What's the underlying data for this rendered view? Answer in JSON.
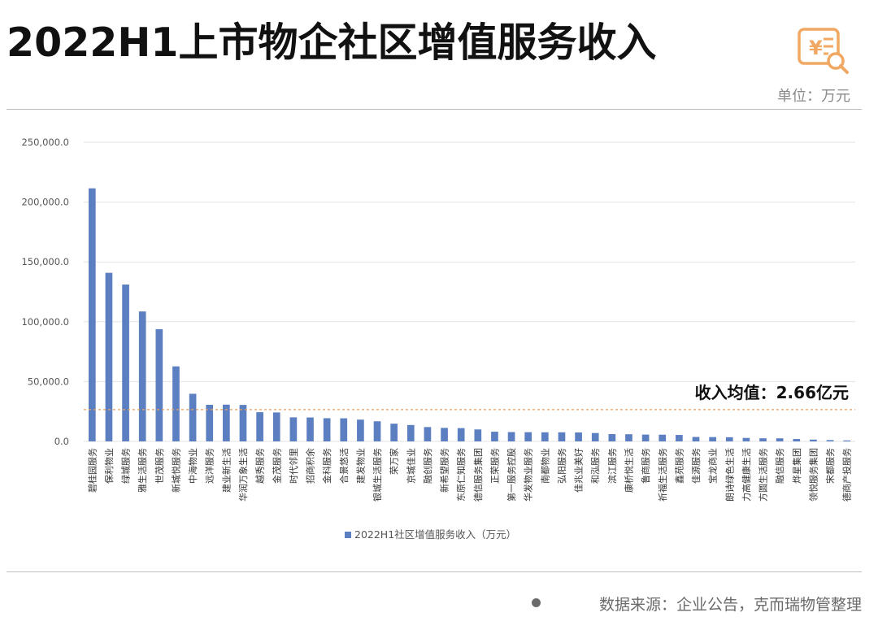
{
  "header": {
    "title": "2022H1上市物企社区增值服务收入",
    "unit": "单位：万元",
    "logo_icon": "currency-search-icon"
  },
  "footer": {
    "source": "数据来源：企业公告，克而瑞物管整理"
  },
  "colors": {
    "bar": "#5b7fc1",
    "average_line": "#e8a05c",
    "grid": "#e3e3e3",
    "logo": "#f0a862"
  },
  "chart_data": {
    "type": "bar",
    "categories": [
      "碧桂园服务",
      "保利物业",
      "绿城服务",
      "雅生活服务",
      "世茂服务",
      "新城悦服务",
      "中海物业",
      "远洋服务",
      "建业新生活",
      "华润万象生活",
      "越秀服务",
      "金茂服务",
      "时代邻里",
      "招商积余",
      "金科服务",
      "合景悠活",
      "建发物业",
      "银城生活服务",
      "荣万家",
      "京城佳业",
      "融创服务",
      "新希望服务",
      "东原仁知服务",
      "德信服务集团",
      "正荣服务",
      "第一服务控股",
      "华发物业服务",
      "南都物业",
      "弘阳服务",
      "佳兆业美好",
      "和泓服务",
      "滨江服务",
      "康桥悦生活",
      "鲁商服务",
      "祈福生活服务",
      "鑫苑服务",
      "佳源服务",
      "宝龙商业",
      "朗诗绿色生活",
      "力高健康生活",
      "方圆生活服务",
      "融信服务",
      "烨星集团",
      "领悦服务集团",
      "宋都服务",
      "德商产投服务"
    ],
    "series": [
      {
        "name": "2022H1社区增值服务收入（万元）",
        "values": [
          211500,
          140900,
          131100,
          108600,
          93800,
          62700,
          39800,
          30600,
          30700,
          30500,
          24400,
          24200,
          20100,
          20000,
          19400,
          19300,
          18200,
          16800,
          14800,
          13700,
          12000,
          11300,
          11100,
          10000,
          8100,
          7800,
          7700,
          7600,
          7600,
          7500,
          7000,
          6100,
          6000,
          5700,
          5600,
          5400,
          3700,
          3600,
          3500,
          2900,
          2600,
          2600,
          2000,
          1500,
          1100,
          800
        ]
      }
    ],
    "ylim": [
      0,
      250000
    ],
    "yticks": [
      "0.0",
      "50,000.0",
      "100,000.0",
      "150,000.0",
      "200,000.0",
      "250,000.0"
    ],
    "grid": true,
    "legend_position": "bottom",
    "average_value": 26600,
    "average_label": "收入均值：2.66亿元"
  }
}
